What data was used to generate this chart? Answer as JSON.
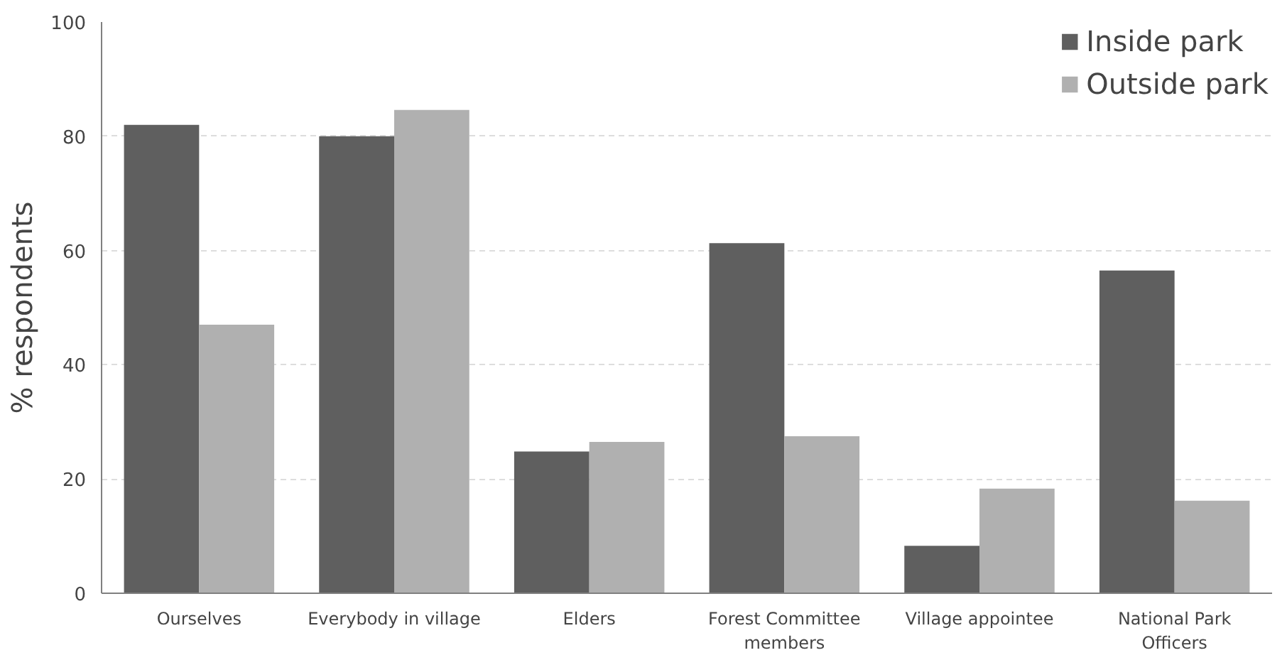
{
  "chart_data": {
    "type": "bar",
    "ylabel": "% respondents",
    "categories": [
      "Ourselves",
      "Everybody in village",
      "Elders",
      "Forest Committee members",
      "Village appointee",
      "National Park Officers"
    ],
    "series": [
      {
        "name": "Inside park",
        "color": "#5f5f5f",
        "values": [
          82,
          80,
          24.8,
          61.3,
          8.3,
          56.5
        ]
      },
      {
        "name": "Outside park",
        "color": "#b0b0b0",
        "values": [
          47,
          84.6,
          26.5,
          27.5,
          18.3,
          16.2
        ]
      }
    ],
    "ylim": [
      0,
      100
    ],
    "yticks": [
      0,
      20,
      40,
      60,
      80,
      100
    ],
    "grid": "y",
    "legend": "top right"
  }
}
